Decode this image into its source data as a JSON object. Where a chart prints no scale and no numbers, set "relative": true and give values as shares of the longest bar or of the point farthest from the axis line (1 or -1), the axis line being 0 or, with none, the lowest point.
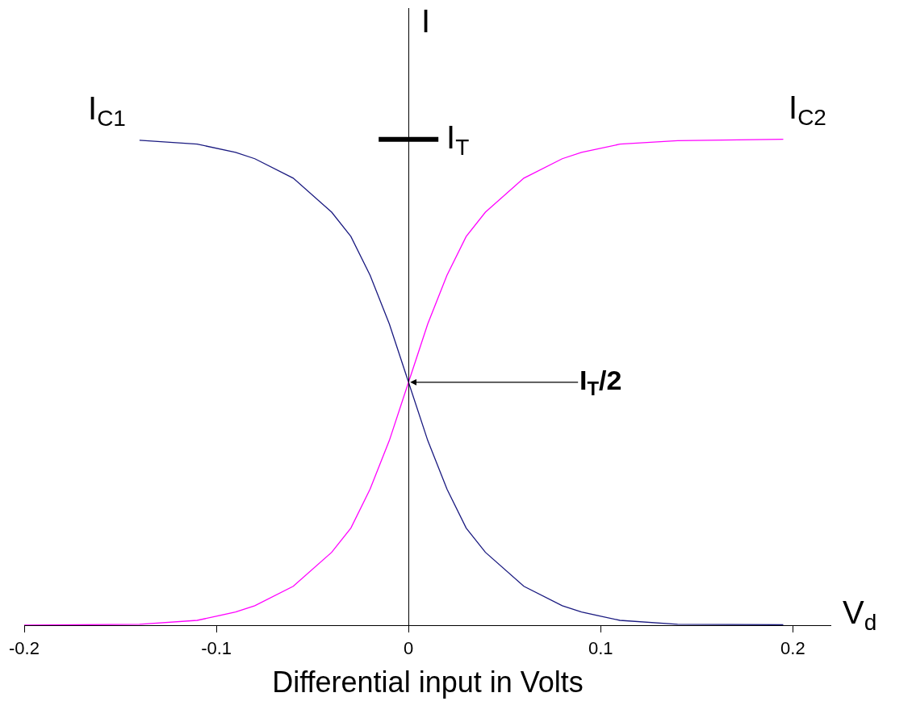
{
  "chart_data": {
    "type": "line",
    "relative": true,
    "xlabel": "Differential input in Volts",
    "ylabel": "I",
    "xlim": [
      -0.2,
      0.22
    ],
    "xticks": [
      -0.2,
      -0.1,
      0,
      0.1,
      0.2
    ],
    "legend": false,
    "marker": "none",
    "line_style": "solid",
    "series": [
      {
        "name": "I$_{C1}$",
        "color": "#1a1a80",
        "x": [
          -0.14,
          -0.11,
          -0.09,
          -0.08,
          -0.06,
          -0.04,
          -0.03,
          -0.02,
          -0.01,
          0,
          0.01,
          0.02,
          0.03,
          0.04,
          0.06,
          0.08,
          0.09,
          0.11,
          0.14,
          0.195
        ],
        "values": [
          0.998,
          0.99,
          0.973,
          0.96,
          0.92,
          0.85,
          0.8,
          0.72,
          0.62,
          0.5,
          0.38,
          0.28,
          0.2,
          0.15,
          0.08,
          0.04,
          0.027,
          0.01,
          0.002,
          0.001
        ]
      },
      {
        "name": "I$_{C2}$",
        "color": "#ff00ff",
        "x": [
          -0.2,
          -0.14,
          -0.11,
          -0.09,
          -0.08,
          -0.06,
          -0.04,
          -0.03,
          -0.02,
          -0.01,
          0,
          0.01,
          0.02,
          0.03,
          0.04,
          0.06,
          0.08,
          0.09,
          0.11,
          0.14,
          0.195
        ],
        "values": [
          0,
          0.002,
          0.01,
          0.027,
          0.04,
          0.08,
          0.15,
          0.2,
          0.28,
          0.38,
          0.5,
          0.62,
          0.72,
          0.8,
          0.85,
          0.92,
          0.96,
          0.973,
          0.99,
          0.997,
          1
        ]
      }
    ],
    "ref_lines": [
      {
        "axis": "y",
        "value": 1,
        "label": "I$_{T}$"
      }
    ],
    "annotations": [
      {
        "text": "I$_{T}$/2",
        "x": 0,
        "y": 0.5
      },
      "V$_{d}$"
    ]
  }
}
